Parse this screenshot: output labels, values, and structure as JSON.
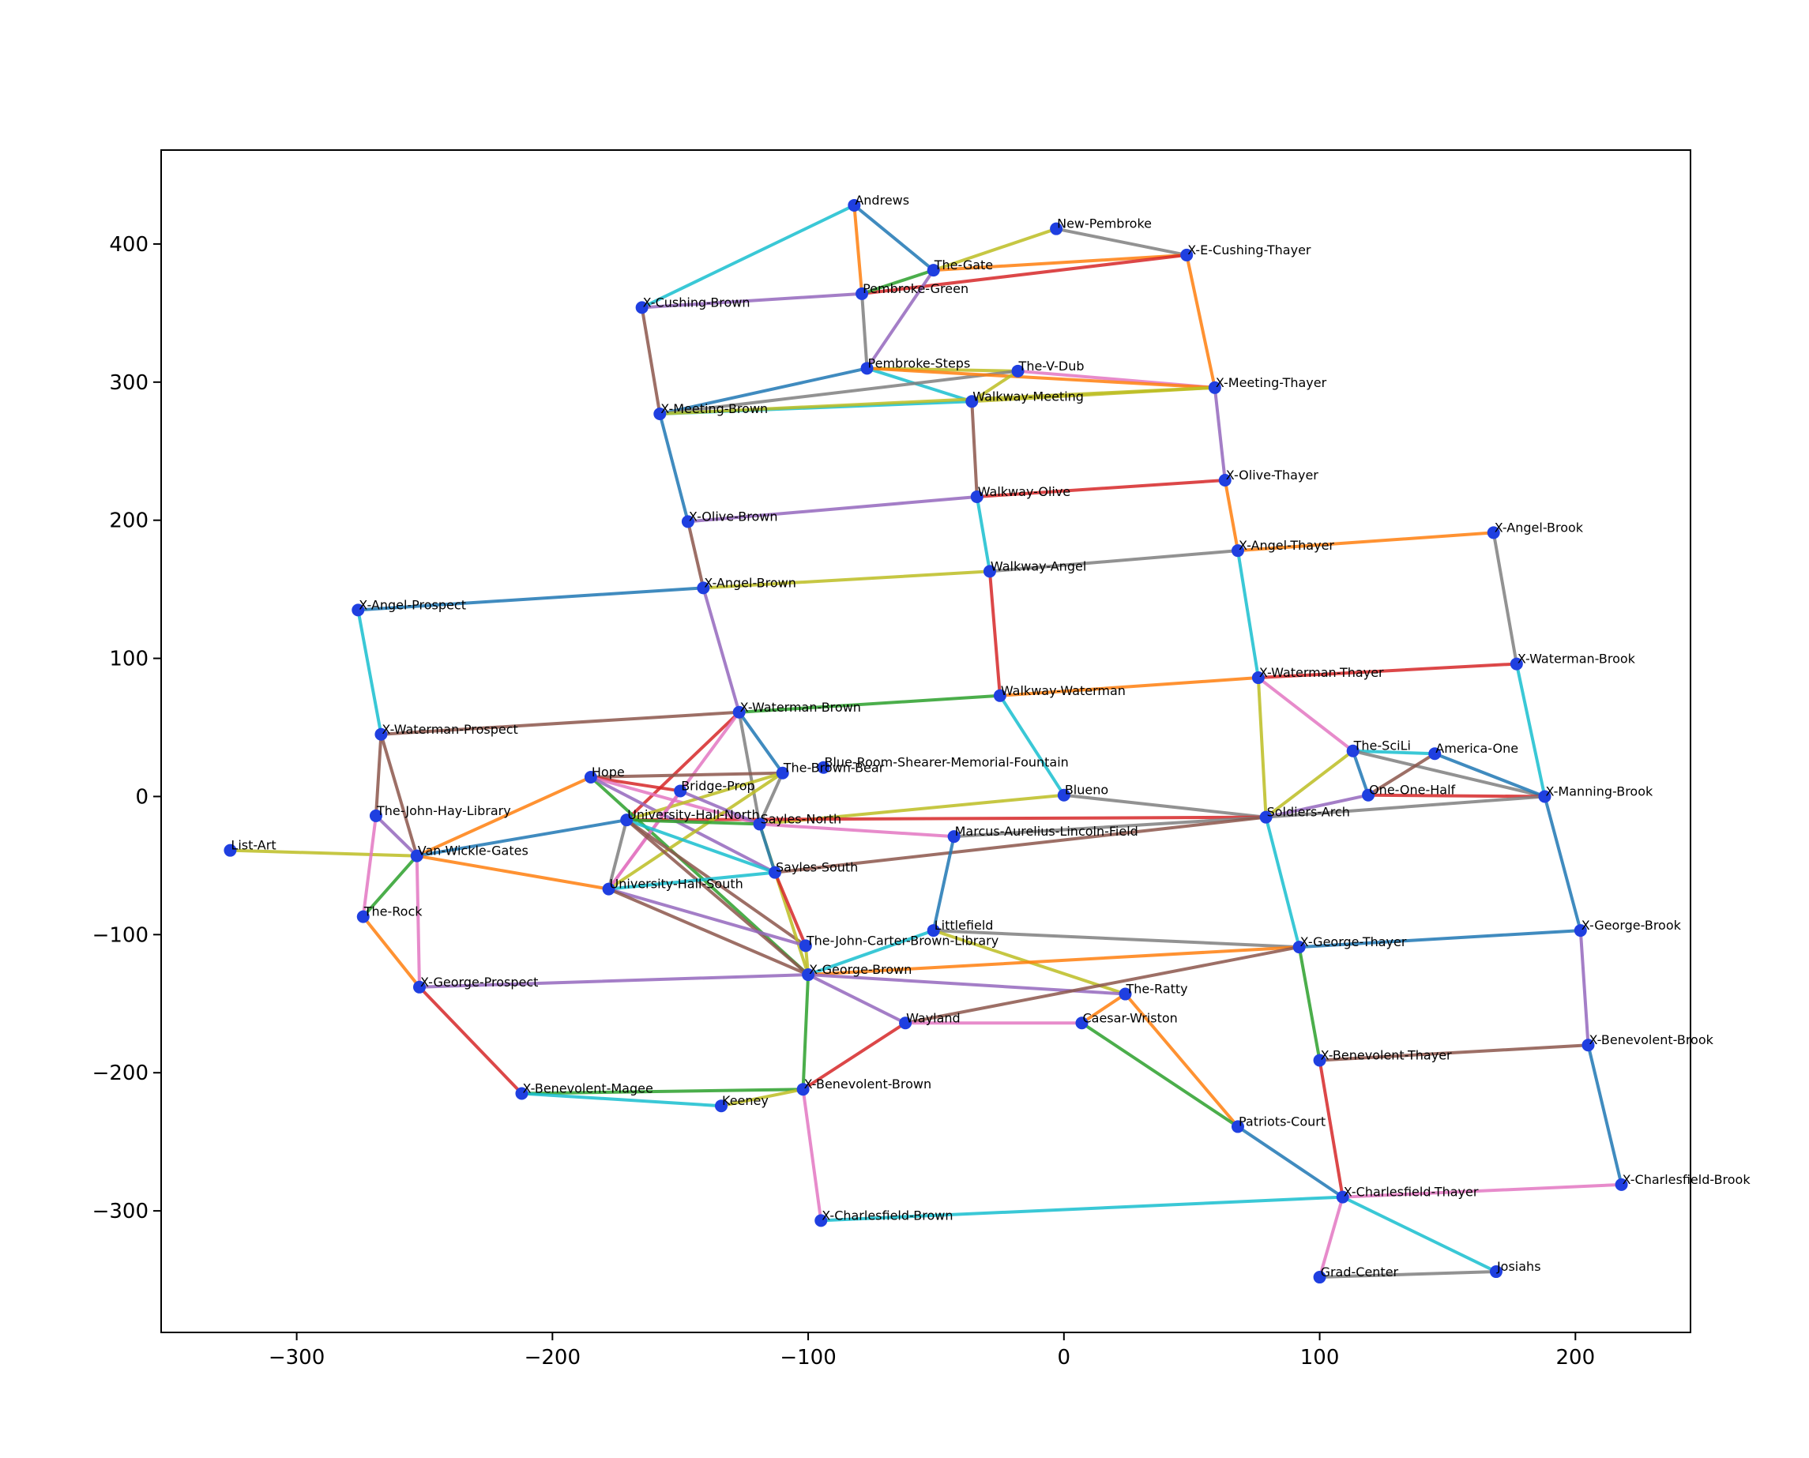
{
  "chart_data": {
    "type": "scatter",
    "title": "",
    "xlabel": "",
    "ylabel": "",
    "xlim": [
      -353,
      245
    ],
    "ylim": [
      -388,
      468
    ],
    "xticks": [
      -300,
      -200,
      -100,
      0,
      100,
      200
    ],
    "yticks": [
      -300,
      -200,
      -100,
      0,
      100,
      200,
      300,
      400
    ],
    "xtick_labels": [
      "−300",
      "−200",
      "−100",
      "0",
      "100",
      "200"
    ],
    "ytick_labels": [
      "−300",
      "−200",
      "−100",
      "0",
      "100",
      "200",
      "300",
      "400"
    ],
    "grid": false,
    "legend": "none",
    "point_color": "#1f3fe0",
    "edge_colors": [
      "#1f77b4",
      "#ff7f0e",
      "#2ca02c",
      "#d62728",
      "#9467bd",
      "#8c564b",
      "#e377c2",
      "#7f7f7f",
      "#bcbd22",
      "#17becf"
    ],
    "nodes": [
      {
        "name": "Andrews",
        "x": -82,
        "y": 428
      },
      {
        "name": "New-Pembroke",
        "x": -3,
        "y": 411
      },
      {
        "name": "X-E-Cushing-Thayer",
        "x": 48,
        "y": 392
      },
      {
        "name": "The-Gate",
        "x": -51,
        "y": 381
      },
      {
        "name": "Pembroke-Green",
        "x": -79,
        "y": 364
      },
      {
        "name": "X-Cushing-Brown",
        "x": -165,
        "y": 354
      },
      {
        "name": "Pembroke-Steps",
        "x": -77,
        "y": 310
      },
      {
        "name": "The-V-Dub",
        "x": -18,
        "y": 308
      },
      {
        "name": "X-Meeting-Thayer",
        "x": 59,
        "y": 296
      },
      {
        "name": "Walkway-Meeting",
        "x": -36,
        "y": 286
      },
      {
        "name": "X-Meeting-Brown",
        "x": -158,
        "y": 277
      },
      {
        "name": "X-Olive-Thayer",
        "x": 63,
        "y": 229
      },
      {
        "name": "Walkway-Olive",
        "x": -34,
        "y": 217
      },
      {
        "name": "X-Olive-Brown",
        "x": -147,
        "y": 199
      },
      {
        "name": "X-Angel-Brook",
        "x": 168,
        "y": 191
      },
      {
        "name": "X-Angel-Thayer",
        "x": 68,
        "y": 178
      },
      {
        "name": "Walkway-Angel",
        "x": -29,
        "y": 163
      },
      {
        "name": "X-Angel-Brown",
        "x": -141,
        "y": 151
      },
      {
        "name": "X-Angel-Prospect",
        "x": -276,
        "y": 135
      },
      {
        "name": "X-Waterman-Brook",
        "x": 177,
        "y": 96
      },
      {
        "name": "X-Waterman-Thayer",
        "x": 76,
        "y": 86
      },
      {
        "name": "Walkway-Waterman",
        "x": -25,
        "y": 73
      },
      {
        "name": "X-Waterman-Brown",
        "x": -127,
        "y": 61
      },
      {
        "name": "X-Waterman-Prospect",
        "x": -267,
        "y": 45
      },
      {
        "name": "The-SciLi",
        "x": 113,
        "y": 33
      },
      {
        "name": "America-One",
        "x": 145,
        "y": 31
      },
      {
        "name": "Blue-Room-Shearer-Memorial-Fountain",
        "x": -94,
        "y": 21
      },
      {
        "name": "The-Brown-Bear",
        "x": -110,
        "y": 17
      },
      {
        "name": "Hope",
        "x": -185,
        "y": 14
      },
      {
        "name": "Bridge-Prop",
        "x": -150,
        "y": 4
      },
      {
        "name": "Blueno",
        "x": 0,
        "y": 1
      },
      {
        "name": "One-One-Half",
        "x": 119,
        "y": 1
      },
      {
        "name": "X-Manning-Brook",
        "x": 188,
        "y": 0
      },
      {
        "name": "The-John-Hay-Library",
        "x": -269,
        "y": -14
      },
      {
        "name": "University-Hall-North",
        "x": -171,
        "y": -17
      },
      {
        "name": "Sayles-North",
        "x": -119,
        "y": -20
      },
      {
        "name": "Soldiers-Arch",
        "x": 79,
        "y": -15
      },
      {
        "name": "Marcus-Aurelius-Lincoln-Field",
        "x": -43,
        "y": -29
      },
      {
        "name": "List-Art",
        "x": -326,
        "y": -39
      },
      {
        "name": "Van-Wickle-Gates",
        "x": -253,
        "y": -43
      },
      {
        "name": "Sayles-South",
        "x": -113,
        "y": -55
      },
      {
        "name": "University-Hall-South",
        "x": -178,
        "y": -67
      },
      {
        "name": "The-Rock",
        "x": -274,
        "y": -87
      },
      {
        "name": "Littlefield",
        "x": -51,
        "y": -97
      },
      {
        "name": "X-George-Brook",
        "x": 202,
        "y": -97
      },
      {
        "name": "The-John-Carter-Brown-Library",
        "x": -101,
        "y": -108
      },
      {
        "name": "X-George-Thayer",
        "x": 92,
        "y": -109
      },
      {
        "name": "X-George-Brown",
        "x": -100,
        "y": -129
      },
      {
        "name": "X-George-Prospect",
        "x": -252,
        "y": -138
      },
      {
        "name": "The-Ratty",
        "x": 24,
        "y": -143
      },
      {
        "name": "Wayland",
        "x": -62,
        "y": -164
      },
      {
        "name": "Caesar-Wriston",
        "x": 7,
        "y": -164
      },
      {
        "name": "X-Benevolent-Brook",
        "x": 205,
        "y": -180
      },
      {
        "name": "X-Benevolent-Thayer",
        "x": 100,
        "y": -191
      },
      {
        "name": "X-Benevolent-Brown",
        "x": -102,
        "y": -212
      },
      {
        "name": "X-Benevolent-Magee",
        "x": -212,
        "y": -215
      },
      {
        "name": "Keeney",
        "x": -134,
        "y": -224
      },
      {
        "name": "Patriots-Court",
        "x": 68,
        "y": -239
      },
      {
        "name": "X-Charlesfield-Brook",
        "x": 218,
        "y": -281
      },
      {
        "name": "X-Charlesfield-Thayer",
        "x": 109,
        "y": -290
      },
      {
        "name": "X-Charlesfield-Brown",
        "x": -95,
        "y": -307
      },
      {
        "name": "Josiahs",
        "x": 169,
        "y": -344
      },
      {
        "name": "Grad-Center",
        "x": 100,
        "y": -348
      }
    ],
    "edges": [
      [
        "Andrews",
        "X-Cushing-Brown",
        "#17becf"
      ],
      [
        "Andrews",
        "Pembroke-Green",
        "#ff7f0e"
      ],
      [
        "Andrews",
        "The-Gate",
        "#1f77b4"
      ],
      [
        "The-Gate",
        "New-Pembroke",
        "#bcbd22"
      ],
      [
        "New-Pembroke",
        "X-E-Cushing-Thayer",
        "#7f7f7f"
      ],
      [
        "The-Gate",
        "X-E-Cushing-Thayer",
        "#ff7f0e"
      ],
      [
        "Pembroke-Green",
        "X-E-Cushing-Thayer",
        "#d62728"
      ],
      [
        "Pembroke-Green",
        "The-Gate",
        "#2ca02c"
      ],
      [
        "X-Cushing-Brown",
        "Pembroke-Green",
        "#9467bd"
      ],
      [
        "X-Cushing-Brown",
        "X-Meeting-Brown",
        "#8c564b"
      ],
      [
        "Pembroke-Green",
        "Pembroke-Steps",
        "#7f7f7f"
      ],
      [
        "The-Gate",
        "Pembroke-Steps",
        "#9467bd"
      ],
      [
        "X-E-Cushing-Thayer",
        "X-Meeting-Thayer",
        "#ff7f0e"
      ],
      [
        "Pembroke-Steps",
        "X-Meeting-Brown",
        "#1f77b4"
      ],
      [
        "Pembroke-Steps",
        "Walkway-Meeting",
        "#17becf"
      ],
      [
        "Pembroke-Steps",
        "The-V-Dub",
        "#bcbd22"
      ],
      [
        "The-V-Dub",
        "X-Meeting-Brown",
        "#7f7f7f"
      ],
      [
        "The-V-Dub",
        "X-Meeting-Thayer",
        "#e377c2"
      ],
      [
        "Pembroke-Steps",
        "X-Meeting-Thayer",
        "#ff7f0e"
      ],
      [
        "The-V-Dub",
        "Walkway-Meeting",
        "#bcbd22"
      ],
      [
        "Walkway-Meeting",
        "X-Meeting-Thayer",
        "#bcbd22"
      ],
      [
        "X-Meeting-Brown",
        "Walkway-Meeting",
        "#17becf"
      ],
      [
        "X-Meeting-Brown",
        "X-Meeting-Thayer",
        "#bcbd22"
      ],
      [
        "Walkway-Meeting",
        "Walkway-Olive",
        "#8c564b"
      ],
      [
        "X-Meeting-Brown",
        "X-Olive-Brown",
        "#1f77b4"
      ],
      [
        "X-Meeting-Thayer",
        "X-Olive-Thayer",
        "#9467bd"
      ],
      [
        "X-Olive-Brown",
        "Walkway-Olive",
        "#9467bd"
      ],
      [
        "Walkway-Olive",
        "X-Olive-Thayer",
        "#d62728"
      ],
      [
        "X-Olive-Thayer",
        "X-Angel-Thayer",
        "#ff7f0e"
      ],
      [
        "X-Olive-Brown",
        "X-Angel-Brown",
        "#8c564b"
      ],
      [
        "Walkway-Olive",
        "Walkway-Angel",
        "#17becf"
      ],
      [
        "X-Angel-Brown",
        "Walkway-Angel",
        "#bcbd22"
      ],
      [
        "Walkway-Angel",
        "X-Angel-Thayer",
        "#7f7f7f"
      ],
      [
        "X-Angel-Thayer",
        "X-Angel-Brook",
        "#ff7f0e"
      ],
      [
        "X-Angel-Prospect",
        "X-Angel-Brown",
        "#1f77b4"
      ],
      [
        "X-Angel-Prospect",
        "X-Waterman-Prospect",
        "#17becf"
      ],
      [
        "X-Angel-Brown",
        "X-Waterman-Brown",
        "#9467bd"
      ],
      [
        "Walkway-Angel",
        "Walkway-Waterman",
        "#d62728"
      ],
      [
        "X-Angel-Thayer",
        "X-Waterman-Thayer",
        "#17becf"
      ],
      [
        "X-Angel-Brook",
        "X-Waterman-Brook",
        "#7f7f7f"
      ],
      [
        "X-Waterman-Thayer",
        "X-Waterman-Brook",
        "#d62728"
      ],
      [
        "Walkway-Waterman",
        "X-Waterman-Thayer",
        "#ff7f0e"
      ],
      [
        "X-Waterman-Brown",
        "Walkway-Waterman",
        "#2ca02c"
      ],
      [
        "X-Waterman-Prospect",
        "X-Waterman-Brown",
        "#8c564b"
      ],
      [
        "X-Waterman-Prospect",
        "Van-Wickle-Gates",
        "#8c564b"
      ],
      [
        "X-Waterman-Prospect",
        "The-John-Hay-Library",
        "#8c564b"
      ],
      [
        "X-Waterman-Brook",
        "X-Manning-Brook",
        "#17becf"
      ],
      [
        "X-Waterman-Thayer",
        "The-SciLi",
        "#e377c2"
      ],
      [
        "X-Waterman-Thayer",
        "Soldiers-Arch",
        "#bcbd22"
      ],
      [
        "Walkway-Waterman",
        "Blueno",
        "#17becf"
      ],
      [
        "X-Waterman-Brown",
        "The-Brown-Bear",
        "#1f77b4"
      ],
      [
        "X-Waterman-Brown",
        "Sayles-North",
        "#7f7f7f"
      ],
      [
        "X-Waterman-Brown",
        "University-Hall-North",
        "#d62728"
      ],
      [
        "X-Waterman-Brown",
        "University-Hall-South",
        "#e377c2"
      ],
      [
        "The-SciLi",
        "America-One",
        "#17becf"
      ],
      [
        "The-SciLi",
        "One-One-Half",
        "#1f77b4"
      ],
      [
        "The-SciLi",
        "X-Manning-Brook",
        "#7f7f7f"
      ],
      [
        "The-SciLi",
        "Soldiers-Arch",
        "#bcbd22"
      ],
      [
        "America-One",
        "X-Manning-Brook",
        "#1f77b4"
      ],
      [
        "America-One",
        "One-One-Half",
        "#8c564b"
      ],
      [
        "One-One-Half",
        "X-Manning-Brook",
        "#d62728"
      ],
      [
        "One-One-Half",
        "Soldiers-Arch",
        "#9467bd"
      ],
      [
        "Soldiers-Arch",
        "X-Manning-Brook",
        "#7f7f7f"
      ],
      [
        "Blueno",
        "Soldiers-Arch",
        "#7f7f7f"
      ],
      [
        "Blueno",
        "Sayles-North",
        "#bcbd22"
      ],
      [
        "Soldiers-Arch",
        "University-Hall-North",
        "#d62728"
      ],
      [
        "Soldiers-Arch",
        "Marcus-Aurelius-Lincoln-Field",
        "#7f7f7f"
      ],
      [
        "Soldiers-Arch",
        "Sayles-South",
        "#8c564b"
      ],
      [
        "Soldiers-Arch",
        "X-George-Thayer",
        "#17becf"
      ],
      [
        "X-Manning-Brook",
        "X-George-Brook",
        "#1f77b4"
      ],
      [
        "Hope",
        "The-Brown-Bear",
        "#8c564b"
      ],
      [
        "Hope",
        "Bridge-Prop",
        "#d62728"
      ],
      [
        "Hope",
        "Sayles-North",
        "#e377c2"
      ],
      [
        "Hope",
        "Van-Wickle-Gates",
        "#ff7f0e"
      ],
      [
        "Hope",
        "X-George-Brown",
        "#2ca02c"
      ],
      [
        "Hope",
        "Sayles-South",
        "#9467bd"
      ],
      [
        "The-Brown-Bear",
        "University-Hall-North",
        "#bcbd22"
      ],
      [
        "The-Brown-Bear",
        "University-Hall-South",
        "#bcbd22"
      ],
      [
        "The-Brown-Bear",
        "Sayles-North",
        "#7f7f7f"
      ],
      [
        "Bridge-Prop",
        "Sayles-North",
        "#9467bd"
      ],
      [
        "Bridge-Prop",
        "University-Hall-South",
        "#e377c2"
      ],
      [
        "University-Hall-North",
        "Sayles-North",
        "#2ca02c"
      ],
      [
        "University-Hall-North",
        "Sayles-South",
        "#17becf"
      ],
      [
        "University-Hall-North",
        "Van-Wickle-Gates",
        "#1f77b4"
      ],
      [
        "University-Hall-North",
        "University-Hall-South",
        "#7f7f7f"
      ],
      [
        "University-Hall-North",
        "X-George-Brown",
        "#8c564b"
      ],
      [
        "University-Hall-North",
        "The-John-Carter-Brown-Library",
        "#8c564b"
      ],
      [
        "Sayles-North",
        "Marcus-Aurelius-Lincoln-Field",
        "#e377c2"
      ],
      [
        "Sayles-North",
        "X-George-Brown",
        "#bcbd22"
      ],
      [
        "Sayles-North",
        "Sayles-South",
        "#1f77b4"
      ],
      [
        "Sayles-South",
        "University-Hall-South",
        "#17becf"
      ],
      [
        "Sayles-South",
        "The-John-Carter-Brown-Library",
        "#d62728"
      ],
      [
        "University-Hall-South",
        "Van-Wickle-Gates",
        "#ff7f0e"
      ],
      [
        "University-Hall-South",
        "The-John-Carter-Brown-Library",
        "#9467bd"
      ],
      [
        "University-Hall-South",
        "X-George-Brown",
        "#8c564b"
      ],
      [
        "Marcus-Aurelius-Lincoln-Field",
        "Littlefield",
        "#1f77b4"
      ],
      [
        "List-Art",
        "Van-Wickle-Gates",
        "#bcbd22"
      ],
      [
        "The-John-Hay-Library",
        "Van-Wickle-Gates",
        "#9467bd"
      ],
      [
        "The-John-Hay-Library",
        "The-Rock",
        "#e377c2"
      ],
      [
        "Van-Wickle-Gates",
        "The-Rock",
        "#2ca02c"
      ],
      [
        "Van-Wickle-Gates",
        "X-George-Prospect",
        "#e377c2"
      ],
      [
        "The-Rock",
        "X-George-Prospect",
        "#ff7f0e"
      ],
      [
        "X-George-Prospect",
        "X-George-Brown",
        "#9467bd"
      ],
      [
        "X-George-Prospect",
        "X-Benevolent-Magee",
        "#d62728"
      ],
      [
        "Littlefield",
        "X-George-Brown",
        "#17becf"
      ],
      [
        "Littlefield",
        "X-George-Thayer",
        "#7f7f7f"
      ],
      [
        "Littlefield",
        "The-Ratty",
        "#bcbd22"
      ],
      [
        "The-John-Carter-Brown-Library",
        "X-George-Brown",
        "#bcbd22"
      ],
      [
        "X-George-Brown",
        "X-George-Thayer",
        "#ff7f0e"
      ],
      [
        "X-George-Brown",
        "The-Ratty",
        "#9467bd"
      ],
      [
        "X-George-Brown",
        "Wayland",
        "#9467bd"
      ],
      [
        "X-George-Brown",
        "X-Benevolent-Brown",
        "#2ca02c"
      ],
      [
        "X-George-Thayer",
        "X-George-Brook",
        "#1f77b4"
      ],
      [
        "X-George-Thayer",
        "Wayland",
        "#8c564b"
      ],
      [
        "X-George-Thayer",
        "X-Benevolent-Thayer",
        "#2ca02c"
      ],
      [
        "X-George-Brook",
        "X-Benevolent-Brook",
        "#9467bd"
      ],
      [
        "The-Ratty",
        "Caesar-Wriston",
        "#ff7f0e"
      ],
      [
        "The-Ratty",
        "Patriots-Court",
        "#ff7f0e"
      ],
      [
        "Wayland",
        "Caesar-Wriston",
        "#e377c2"
      ],
      [
        "Wayland",
        "X-Benevolent-Brown",
        "#d62728"
      ],
      [
        "Caesar-Wriston",
        "Patriots-Court",
        "#2ca02c"
      ],
      [
        "X-Benevolent-Thayer",
        "X-Benevolent-Brook",
        "#8c564b"
      ],
      [
        "X-Benevolent-Thayer",
        "X-Charlesfield-Thayer",
        "#d62728"
      ],
      [
        "X-Benevolent-Brook",
        "X-Charlesfield-Brook",
        "#1f77b4"
      ],
      [
        "X-Benevolent-Magee",
        "X-Benevolent-Brown",
        "#2ca02c"
      ],
      [
        "X-Benevolent-Magee",
        "Keeney",
        "#17becf"
      ],
      [
        "Keeney",
        "X-Benevolent-Brown",
        "#bcbd22"
      ],
      [
        "X-Benevolent-Brown",
        "X-Charlesfield-Brown",
        "#e377c2"
      ],
      [
        "Patriots-Court",
        "X-Charlesfield-Thayer",
        "#1f77b4"
      ],
      [
        "X-Charlesfield-Brown",
        "X-Charlesfield-Thayer",
        "#17becf"
      ],
      [
        "X-Charlesfield-Thayer",
        "X-Charlesfield-Brook",
        "#e377c2"
      ],
      [
        "X-Charlesfield-Thayer",
        "Josiahs",
        "#17becf"
      ],
      [
        "X-Charlesfield-Thayer",
        "Grad-Center",
        "#e377c2"
      ],
      [
        "Grad-Center",
        "Josiahs",
        "#7f7f7f"
      ]
    ]
  }
}
